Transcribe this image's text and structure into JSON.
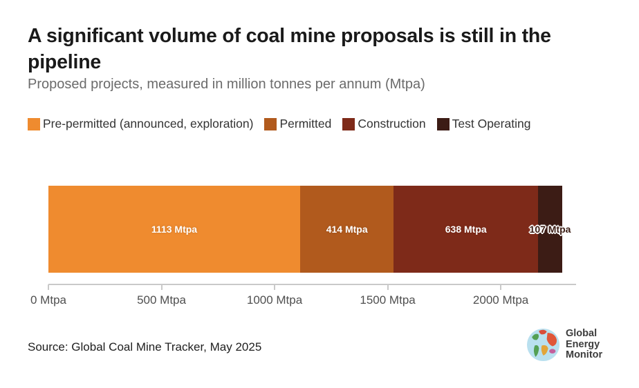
{
  "chart_data": {
    "type": "bar",
    "orientation": "horizontal",
    "stacked": true,
    "title": "A significant volume of coal mine proposals is still in the pipeline",
    "subtitle": "Proposed projects, measured in million tonnes per annum (Mtpa)",
    "unit": "Mtpa",
    "total": 2272,
    "axis_max": 2333,
    "grid": false,
    "legend_position": "top",
    "series": [
      {
        "name": "Pre-permitted (announced, exploration)",
        "value": 1113,
        "data_label": "1113 Mtpa",
        "color": "#ef8b2f",
        "label_style": "light"
      },
      {
        "name": "Permitted",
        "value": 414,
        "data_label": "414 Mtpa",
        "color": "#b15a1d",
        "label_style": "light"
      },
      {
        "name": "Construction",
        "value": 638,
        "data_label": "638 Mtpa",
        "color": "#7e2a19",
        "label_style": "light"
      },
      {
        "name": "Test Operating",
        "value": 107,
        "data_label": "107 Mtpa",
        "color": "#3c1c15",
        "label_style": "dark-halo"
      }
    ],
    "x_ticks": [
      {
        "value": 0,
        "label": "0 Mtpa"
      },
      {
        "value": 500,
        "label": "500 Mtpa"
      },
      {
        "value": 1000,
        "label": "1000 Mtpa"
      },
      {
        "value": 1500,
        "label": "1500 Mtpa"
      },
      {
        "value": 2000,
        "label": "2000 Mtpa"
      }
    ]
  },
  "footer": {
    "source": "Source: Global Coal Mine Tracker, May 2025",
    "logo_lines": {
      "0": "Global",
      "1": "Energy",
      "2": "Monitor"
    }
  },
  "colors": {
    "title_text": "#1a1a1a",
    "subtitle_text": "#6b6b6b",
    "axis": "#c9c9c9",
    "tick_label": "#4f4f4f"
  }
}
